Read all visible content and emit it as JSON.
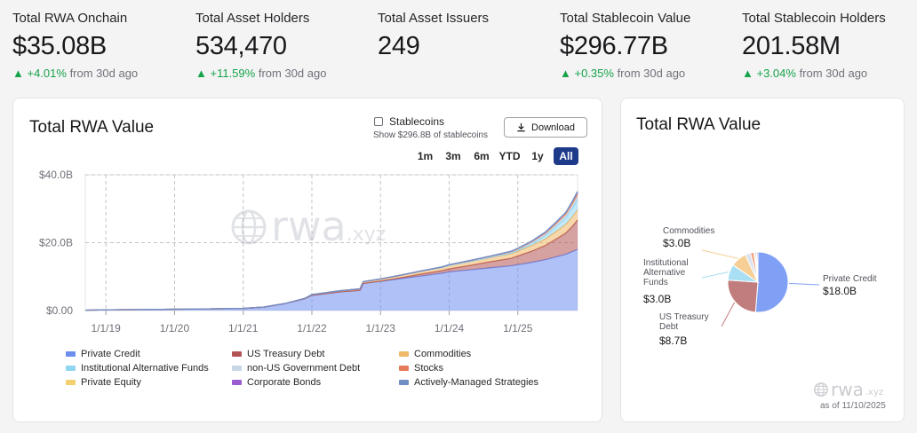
{
  "stats": [
    {
      "label": "Total RWA Onchain",
      "value": "$35.08B",
      "change": "▲ +4.01%",
      "period": "from 30d ago"
    },
    {
      "label": "Total Asset Holders",
      "value": "534,470",
      "change": "▲ +11.59%",
      "period": "from 30d ago"
    },
    {
      "label": "Total Asset Issuers",
      "value": "249",
      "change": "",
      "period": ""
    },
    {
      "label": "Total Stablecoin Value",
      "value": "$296.77B",
      "change": "▲ +0.35%",
      "period": "from 30d ago"
    },
    {
      "label": "Total Stablecoin Holders",
      "value": "201.58M",
      "change": "▲ +3.04%",
      "period": "from 30d ago"
    }
  ],
  "main_chart": {
    "title": "Total RWA Value",
    "stablecoins_toggle": {
      "label": "Stablecoins",
      "sublabel": "Show $296.8B of stablecoins",
      "checked": false
    },
    "download_label": "Download",
    "ranges": [
      "1m",
      "3m",
      "6m",
      "YTD",
      "1y",
      "All"
    ],
    "active_range": "All",
    "watermark": "rwa.xyz",
    "legend": [
      {
        "label": "Private Credit",
        "color": "#6d8ef0"
      },
      {
        "label": "US Treasury Debt",
        "color": "#b25454"
      },
      {
        "label": "Commodities",
        "color": "#f0b867"
      },
      {
        "label": "Institutional Alternative Funds",
        "color": "#8fd6f2"
      },
      {
        "label": "non-US Government Debt",
        "color": "#c9d6e6"
      },
      {
        "label": "Stocks",
        "color": "#e77c5a"
      },
      {
        "label": "Private Equity",
        "color": "#f5d071"
      },
      {
        "label": "Corporate Bonds",
        "color": "#9b5cd1"
      },
      {
        "label": "Actively-Managed Strategies",
        "color": "#6f8fc4"
      }
    ]
  },
  "chart_data": [
    {
      "type": "area",
      "title": "Total RWA Value",
      "x_ticks": [
        "1/1/19",
        "1/1/20",
        "1/1/21",
        "1/1/22",
        "1/1/23",
        "1/1/24",
        "1/1/25"
      ],
      "y_ticks": [
        "$0.00",
        "$20.0B",
        "$40.0B"
      ],
      "ylim": [
        0,
        40
      ],
      "y_unit": "$B",
      "xlim": [
        2018.7,
        2025.87
      ],
      "stacked": true,
      "grid": true,
      "legend_position": "bottom",
      "x": [
        2018.7,
        2019.0,
        2019.5,
        2020.0,
        2020.5,
        2021.0,
        2021.3,
        2021.6,
        2021.9,
        2022.0,
        2022.4,
        2022.7,
        2022.75,
        2023.0,
        2023.3,
        2023.6,
        2023.9,
        2024.0,
        2024.3,
        2024.6,
        2024.9,
        2025.0,
        2025.2,
        2025.4,
        2025.55,
        2025.7,
        2025.8,
        2025.87
      ],
      "series": [
        {
          "name": "Private Credit",
          "values": [
            0.1,
            0.2,
            0.3,
            0.4,
            0.5,
            0.6,
            1.0,
            2.0,
            3.5,
            4.5,
            5.5,
            6.0,
            8.0,
            8.6,
            9.4,
            10.2,
            11.0,
            11.4,
            12.0,
            12.6,
            13.2,
            13.5,
            14.2,
            15.0,
            15.8,
            16.6,
            17.4,
            18.0
          ]
        },
        {
          "name": "US Treasury Debt",
          "values": [
            0,
            0,
            0,
            0,
            0,
            0,
            0,
            0,
            0,
            0,
            0,
            0,
            0,
            0.1,
            0.3,
            0.6,
            0.8,
            0.9,
            1.3,
            1.8,
            2.2,
            2.6,
            3.3,
            4.2,
            5.2,
            6.3,
            7.6,
            8.7
          ]
        },
        {
          "name": "Commodities",
          "values": [
            0,
            0,
            0,
            0,
            0,
            0.05,
            0.05,
            0.05,
            0.1,
            0.2,
            0.3,
            0.4,
            0.5,
            0.6,
            0.7,
            0.8,
            0.9,
            1.0,
            1.1,
            1.2,
            1.3,
            1.4,
            1.6,
            1.9,
            2.2,
            2.5,
            2.8,
            3.0
          ]
        },
        {
          "name": "Institutional Alternative Funds",
          "values": [
            0,
            0,
            0,
            0,
            0,
            0,
            0,
            0,
            0,
            0,
            0,
            0,
            0,
            0,
            0,
            0,
            0,
            0,
            0.05,
            0.1,
            0.2,
            0.3,
            0.6,
            1.0,
            1.5,
            2.0,
            2.6,
            3.0
          ]
        },
        {
          "name": "non-US Government Debt",
          "values": [
            0,
            0,
            0,
            0,
            0,
            0,
            0,
            0,
            0,
            0,
            0,
            0,
            0,
            0,
            0.05,
            0.1,
            0.15,
            0.2,
            0.25,
            0.3,
            0.4,
            0.4,
            0.5,
            0.6,
            0.7,
            0.8,
            0.9,
            1.0
          ]
        },
        {
          "name": "Stocks",
          "values": [
            0,
            0,
            0,
            0,
            0,
            0,
            0,
            0,
            0,
            0,
            0,
            0,
            0,
            0,
            0,
            0,
            0,
            0,
            0,
            0,
            0,
            0,
            0,
            0.05,
            0.1,
            0.2,
            0.4,
            0.6
          ]
        },
        {
          "name": "Private Equity",
          "values": [
            0,
            0,
            0,
            0,
            0,
            0,
            0,
            0,
            0,
            0,
            0,
            0,
            0,
            0,
            0,
            0,
            0,
            0,
            0.05,
            0.05,
            0.1,
            0.1,
            0.1,
            0.15,
            0.2,
            0.25,
            0.3,
            0.3
          ]
        },
        {
          "name": "Corporate Bonds",
          "values": [
            0,
            0,
            0,
            0,
            0,
            0,
            0,
            0,
            0,
            0,
            0,
            0,
            0,
            0,
            0,
            0,
            0,
            0,
            0,
            0,
            0.05,
            0.05,
            0.1,
            0.1,
            0.15,
            0.2,
            0.25,
            0.25
          ]
        },
        {
          "name": "Actively-Managed Strategies",
          "values": [
            0,
            0,
            0,
            0,
            0,
            0,
            0,
            0,
            0,
            0,
            0,
            0,
            0,
            0,
            0,
            0,
            0,
            0,
            0,
            0,
            0,
            0,
            0.05,
            0.1,
            0.1,
            0.15,
            0.2,
            0.25
          ]
        }
      ]
    },
    {
      "type": "pie",
      "title": "Total RWA Value",
      "slices": [
        {
          "label": "Private Credit",
          "value_label": "$18.0B",
          "value": 18.0,
          "color": "#7fa0f5"
        },
        {
          "label": "US Treasury Debt",
          "value_label": "$8.7B",
          "value": 8.7,
          "color": "#c17d7d"
        },
        {
          "label": "Institutional Alternative Funds",
          "value_label": "$3.0B",
          "value": 3.0,
          "color": "#a8dff5"
        },
        {
          "label": "Commodities",
          "value_label": "$3.0B",
          "value": 3.0,
          "color": "#f6cf97"
        },
        {
          "label": "",
          "value_label": "",
          "value": 1.0,
          "color": "#dbe3ee"
        },
        {
          "label": "",
          "value_label": "",
          "value": 0.6,
          "color": "#ee9b80"
        },
        {
          "label": "",
          "value_label": "",
          "value": 0.3,
          "color": "#f7dc91"
        },
        {
          "label": "",
          "value_label": "",
          "value": 0.25,
          "color": "#b58ae0"
        },
        {
          "label": "",
          "value_label": "",
          "value": 0.25,
          "color": "#90aad6"
        }
      ]
    }
  ],
  "pie_card": {
    "title": "Total RWA Value",
    "watermark": "rwa",
    "watermark_suffix": ".xyz",
    "as_of": "as of 11/10/2025"
  }
}
